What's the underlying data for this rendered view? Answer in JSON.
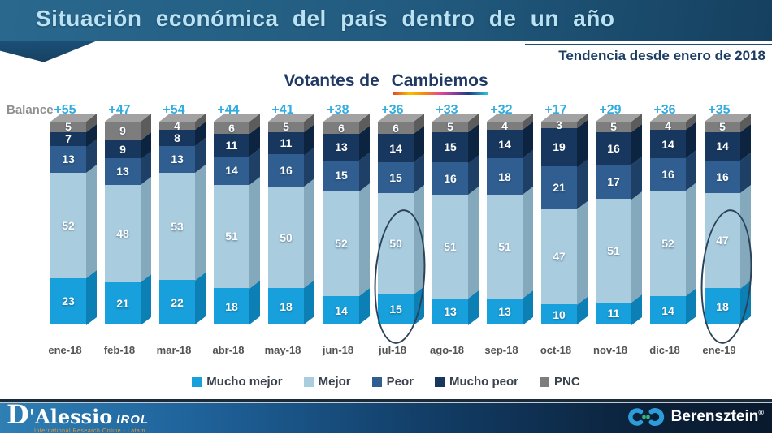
{
  "header": {
    "title": "Situación económica del país dentro de un año",
    "subtitle": "Tendencia desde enero de 2018"
  },
  "chart_title": {
    "prefix": "Votantes de",
    "highlight": "Cambiemos"
  },
  "balance": {
    "label": "Balance",
    "values": [
      "+55",
      "+47",
      "+54",
      "+44",
      "+41",
      "+38",
      "+36",
      "+33",
      "+32",
      "+17",
      "+29",
      "+36",
      "+35"
    ]
  },
  "chart_data": {
    "type": "bar",
    "stacked": true,
    "title": "Situación económica del país dentro de un año - Votantes de Cambiemos",
    "categories": [
      "ene-18",
      "feb-18",
      "mar-18",
      "abr-18",
      "may-18",
      "jun-18",
      "jul-18",
      "ago-18",
      "sep-18",
      "oct-18",
      "nov-18",
      "dic-18",
      "ene-19"
    ],
    "series": [
      {
        "name": "Mucho mejor",
        "color": "#17a0dc",
        "side": "#0c7fb5",
        "values": [
          23,
          21,
          22,
          18,
          18,
          14,
          15,
          13,
          13,
          10,
          11,
          14,
          18
        ]
      },
      {
        "name": "Mejor",
        "color": "#a9ccde",
        "side": "#84a9bd",
        "values": [
          52,
          48,
          53,
          51,
          50,
          52,
          50,
          51,
          51,
          47,
          51,
          52,
          47
        ]
      },
      {
        "name": "Peor",
        "color": "#305e90",
        "side": "#1e3f66",
        "values": [
          13,
          13,
          13,
          14,
          16,
          15,
          15,
          16,
          18,
          21,
          17,
          16,
          16
        ]
      },
      {
        "name": "Mucho peor",
        "color": "#18375e",
        "side": "#0d2440",
        "values": [
          7,
          9,
          8,
          11,
          11,
          13,
          14,
          15,
          14,
          19,
          16,
          14,
          14
        ]
      },
      {
        "name": "PNC",
        "color": "#7d7d7d",
        "side": "#5c5c5c",
        "values": [
          5,
          9,
          4,
          6,
          5,
          6,
          6,
          5,
          4,
          3,
          5,
          4,
          5
        ]
      }
    ],
    "top_color": "#a2a2a2",
    "ylim": [
      0,
      100
    ],
    "grid": false,
    "legend_position": "bottom",
    "balance_row": [
      55,
      47,
      54,
      44,
      41,
      38,
      36,
      33,
      32,
      17,
      29,
      36,
      35
    ],
    "annotations": [
      {
        "shape": "ellipse",
        "category": "jul-18"
      },
      {
        "shape": "ellipse",
        "category": "ene-19"
      }
    ]
  },
  "footer": {
    "dalessio": {
      "name": "D'Alessio",
      "dropcap": "D",
      "rest": "'Alessio",
      "suffix": "IROL",
      "tagline": "International Research Online - Latam"
    },
    "berensztein": {
      "name": "Berensztein",
      "reg": "®"
    }
  }
}
